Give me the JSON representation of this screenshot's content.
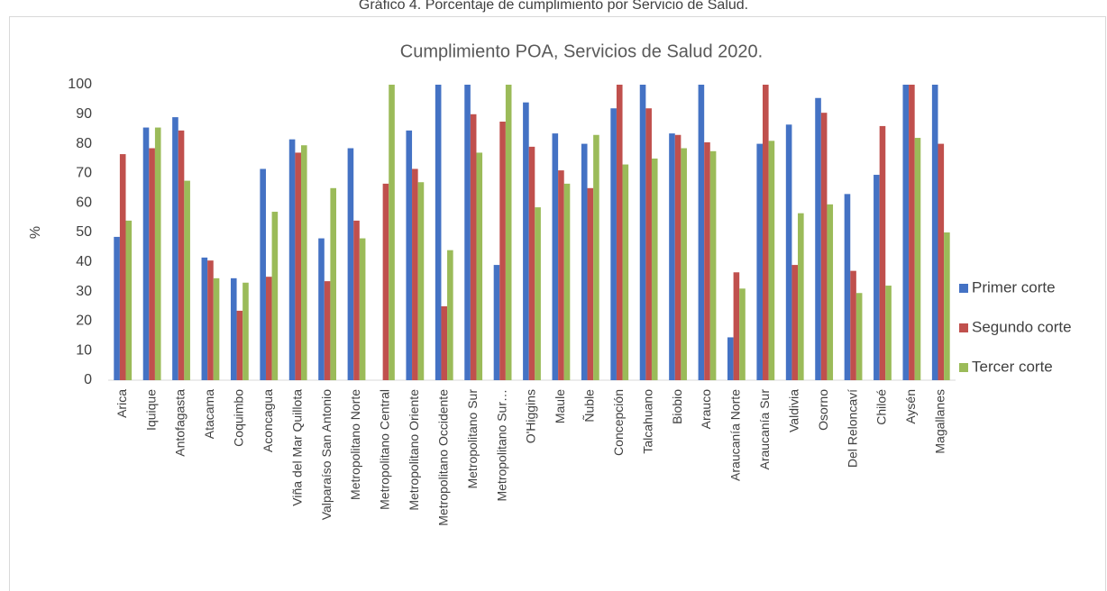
{
  "caption": "Gráfico 4. Porcentaje de cumplimiento por Servicio de Salud.",
  "chart_data": {
    "type": "bar",
    "title": "Cumplimiento POA, Servicios de Salud 2020.",
    "y_label": "%",
    "categories": [
      "Arica",
      "Iquique",
      "Antofagasta",
      "Atacama",
      "Coquimbo",
      "Aconcagua",
      "Viña del Mar Quillota",
      "Valparaíso San Antonio",
      "Metropolitano Norte",
      "Metropolitano Central",
      "Metropolitano Oriente",
      "Metropolitano Occidente",
      "Metropolitano Sur",
      "Metropolitano Sur…",
      "O'Higgins",
      "Maule",
      "Ñuble",
      "Concepción",
      "Talcahuano",
      "Biobio",
      "Arauco",
      "Araucanía Norte",
      "Araucanía Sur",
      "Valdivia",
      "Osorno",
      "Del Reloncaví",
      "Chiloé",
      "Aysén",
      "Magallanes"
    ],
    "series": [
      {
        "name": "Primer corte",
        "color": "#4472c4",
        "values": [
          48.5,
          85.5,
          89,
          41.5,
          34.5,
          71.5,
          81.5,
          48,
          78.5,
          null,
          84.5,
          100,
          100,
          39,
          94,
          83.5,
          80,
          92,
          100,
          83.5,
          100,
          14.5,
          80,
          86.5,
          95.5,
          63,
          69.5,
          100,
          100
        ]
      },
      {
        "name": "Segundo corte",
        "color": "#c0504d",
        "values": [
          76.5,
          78.5,
          84.5,
          40.5,
          23.5,
          35,
          77,
          33.5,
          54,
          66.5,
          71.5,
          25,
          90,
          87.5,
          79,
          71,
          65,
          100,
          92,
          83,
          80.5,
          36.5,
          100,
          39,
          90.5,
          37,
          86,
          100,
          80
        ]
      },
      {
        "name": "Tercer corte",
        "color": "#9bbb59",
        "values": [
          54,
          85.5,
          67.5,
          34.5,
          33,
          57,
          79.5,
          65,
          48,
          100,
          67,
          44,
          77,
          100,
          58.5,
          66.5,
          83,
          73,
          75,
          78.5,
          77.5,
          31,
          81,
          56.5,
          59.5,
          29.5,
          32,
          82,
          50
        ]
      }
    ],
    "ylim": [
      0,
      100
    ],
    "yticks": [
      0,
      10,
      20,
      30,
      40,
      50,
      60,
      70,
      80,
      90,
      100
    ],
    "grid": false,
    "legend": "right"
  }
}
